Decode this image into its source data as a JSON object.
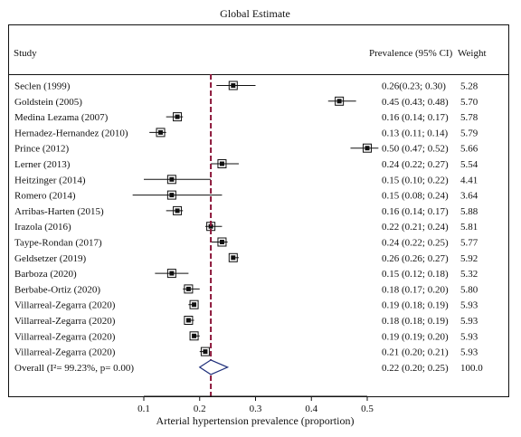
{
  "chart_data": {
    "type": "forest",
    "title": "Global Estimate",
    "xlabel": "Arterial hypertension prevalence (proportion)",
    "xlim": [
      0.1,
      0.5
    ],
    "xticks": [
      0.1,
      0.2,
      0.3,
      0.4,
      0.5
    ],
    "column_headers": {
      "study": "Study",
      "estimate": "Prevalence (95% CI)",
      "weight": "Weight"
    },
    "reference_line": 0.22,
    "studies": [
      {
        "name": "Seclen (1999)",
        "est": 0.26,
        "lo": 0.23,
        "hi": 0.3,
        "label": "0.26(0.23; 0.30)",
        "weight": "5.28"
      },
      {
        "name": "Goldstein (2005)",
        "est": 0.45,
        "lo": 0.43,
        "hi": 0.48,
        "label": "0.45 (0.43; 0.48)",
        "weight": "5.70"
      },
      {
        "name": "Medina Lezama (2007)",
        "est": 0.16,
        "lo": 0.14,
        "hi": 0.17,
        "label": "0.16 (0.14; 0.17)",
        "weight": "5.78"
      },
      {
        "name": "Hernadez-Hernandez (2010)",
        "est": 0.13,
        "lo": 0.11,
        "hi": 0.14,
        "label": "0.13 (0.11; 0.14)",
        "weight": "5.79"
      },
      {
        "name": "Prince (2012)",
        "est": 0.5,
        "lo": 0.47,
        "hi": 0.52,
        "label": "0.50 (0.47; 0.52)",
        "weight": "5.66"
      },
      {
        "name": "Lerner (2013)",
        "est": 0.24,
        "lo": 0.22,
        "hi": 0.27,
        "label": "0.24 (0.22; 0.27)",
        "weight": "5.54"
      },
      {
        "name": "Heitzinger (2014)",
        "est": 0.15,
        "lo": 0.1,
        "hi": 0.22,
        "label": "0.15 (0.10; 0.22)",
        "weight": "4.41"
      },
      {
        "name": "Romero (2014)",
        "est": 0.15,
        "lo": 0.08,
        "hi": 0.24,
        "label": "0.15 (0.08; 0.24)",
        "weight": "3.64"
      },
      {
        "name": "Arribas-Harten (2015)",
        "est": 0.16,
        "lo": 0.14,
        "hi": 0.17,
        "label": "0.16 (0.14; 0.17)",
        "weight": "5.88"
      },
      {
        "name": "Irazola (2016)",
        "est": 0.22,
        "lo": 0.21,
        "hi": 0.24,
        "label": "0.22 (0.21; 0.24)",
        "weight": "5.81"
      },
      {
        "name": "Taype-Rondan (2017)",
        "est": 0.24,
        "lo": 0.22,
        "hi": 0.25,
        "label": "0.24 (0.22; 0.25)",
        "weight": "5.77"
      },
      {
        "name": "Geldsetzer (2019)",
        "est": 0.26,
        "lo": 0.26,
        "hi": 0.27,
        "label": "0.26 (0.26; 0.27)",
        "weight": "5.92"
      },
      {
        "name": "Barboza (2020)",
        "est": 0.15,
        "lo": 0.12,
        "hi": 0.18,
        "label": "0.15 (0.12; 0.18)",
        "weight": "5.32"
      },
      {
        "name": "Berbabe-Ortiz (2020)",
        "est": 0.18,
        "lo": 0.17,
        "hi": 0.2,
        "label": "0.18 (0.17; 0.20)",
        "weight": "5.80"
      },
      {
        "name": "Villarreal-Zegarra (2020)",
        "est": 0.19,
        "lo": 0.18,
        "hi": 0.19,
        "label": "0.19 (0.18; 0.19)",
        "weight": "5.93"
      },
      {
        "name": "Villarreal-Zegarra (2020)",
        "est": 0.18,
        "lo": 0.18,
        "hi": 0.19,
        "label": "0.18 (0.18; 0.19)",
        "weight": "5.93"
      },
      {
        "name": "Villarreal-Zegarra (2020)",
        "est": 0.19,
        "lo": 0.19,
        "hi": 0.2,
        "label": "0.19 (0.19; 0.20)",
        "weight": "5.93"
      },
      {
        "name": "Villarreal-Zegarra (2020)",
        "est": 0.21,
        "lo": 0.2,
        "hi": 0.21,
        "label": "0.21 (0.20; 0.21)",
        "weight": "5.93"
      }
    ],
    "overall": {
      "name": "Overall (I²= 99.23%, p= 0.00)",
      "est": 0.22,
      "lo": 0.2,
      "hi": 0.25,
      "label": "0.22 (0.20; 0.25)",
      "weight": "100.0"
    },
    "colors": {
      "reference_line": "#8b1538",
      "diamond": "#1f2f7a",
      "marker": "#111111"
    }
  }
}
